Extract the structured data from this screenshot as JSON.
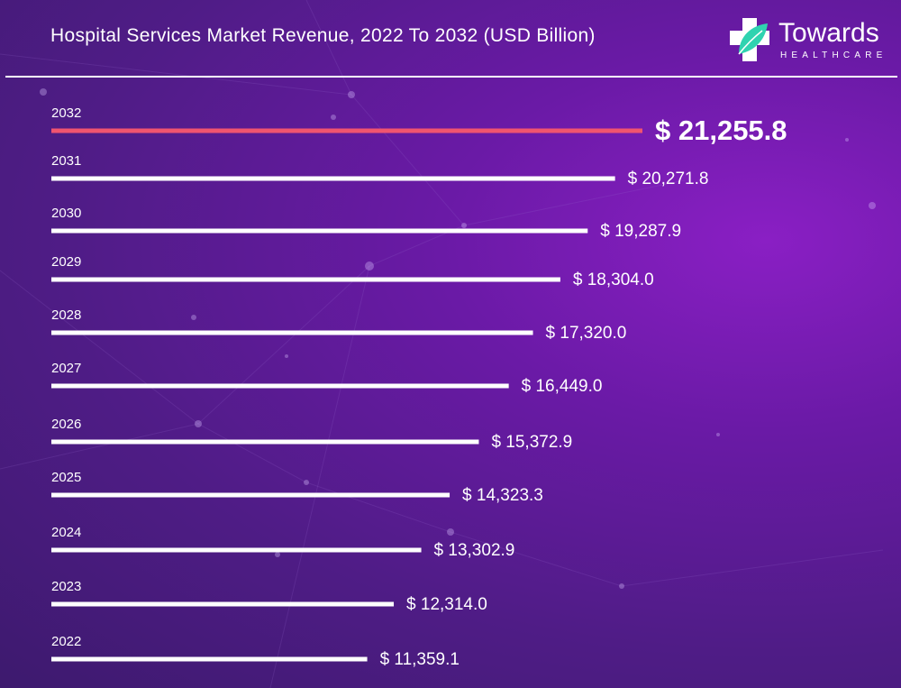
{
  "title": "Hospital Services Market Revenue, 2022 To 2032 (USD Billion)",
  "logo": {
    "name": "Towards",
    "subtitle": "HEALTHCARE"
  },
  "colors": {
    "highlight_bar": "#f0546f",
    "bar": "#ffffff",
    "background": "#5b1b94"
  },
  "chart_data": {
    "type": "bar",
    "orientation": "horizontal",
    "categories": [
      "2032",
      "2031",
      "2030",
      "2029",
      "2028",
      "2027",
      "2026",
      "2025",
      "2024",
      "2023",
      "2022"
    ],
    "values": [
      21255.8,
      20271.8,
      19287.9,
      18304.0,
      17320.0,
      16449.0,
      15372.9,
      14323.3,
      13302.9,
      12314.0,
      11359.1
    ],
    "labels": [
      "$ 21,255.8",
      "$ 20,271.8",
      "$ 19,287.9",
      "$ 18,304.0",
      "$ 17,320.0",
      "$ 16,449.0",
      "$ 15,372.9",
      "$ 14,323.3",
      "$ 13,302.9",
      "$ 12,314.0",
      "$ 11,359.1"
    ],
    "highlight_index": 0,
    "title": "Hospital Services Market Revenue, 2022 To 2032 (USD Billion)",
    "xlabel": "",
    "ylabel": "",
    "grid": false
  }
}
